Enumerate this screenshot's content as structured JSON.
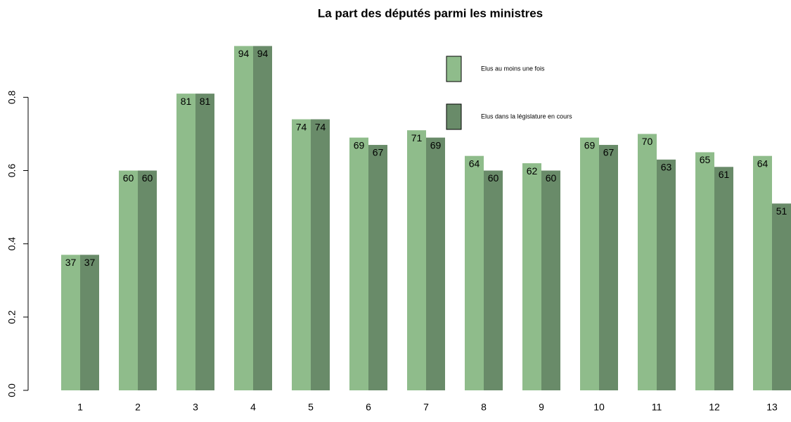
{
  "chart_data": {
    "type": "bar",
    "title": "La part des députés parmi les ministres",
    "categories": [
      "1",
      "2",
      "3",
      "4",
      "5",
      "6",
      "7",
      "8",
      "9",
      "10",
      "11",
      "12",
      "13"
    ],
    "series": [
      {
        "name": "Elus au moins une fois",
        "color": "#8fbc8b",
        "values": [
          0.37,
          0.6,
          0.81,
          0.94,
          0.74,
          0.69,
          0.71,
          0.64,
          0.62,
          0.69,
          0.7,
          0.65,
          0.64
        ],
        "value_labels": [
          "37",
          "60",
          "81",
          "94",
          "74",
          "69",
          "71",
          "64",
          "62",
          "69",
          "70",
          "65",
          "64"
        ]
      },
      {
        "name": "Elus dans la législature en cours",
        "color": "#698b69",
        "values": [
          0.37,
          0.6,
          0.81,
          0.94,
          0.74,
          0.67,
          0.69,
          0.6,
          0.6,
          0.67,
          0.63,
          0.61,
          0.51
        ],
        "value_labels": [
          "37",
          "60",
          "81",
          "94",
          "74",
          "67",
          "69",
          "60",
          "60",
          "67",
          "63",
          "61",
          "51"
        ]
      }
    ],
    "ylim": [
      0,
      0.96
    ],
    "yticks": [
      0,
      0.2,
      0.4,
      0.6,
      0.8
    ],
    "yticks_labels": [
      "0.0",
      "0.2",
      "0.4",
      "0.6",
      "0.8"
    ],
    "grid": false,
    "legend_position": "top-right"
  }
}
